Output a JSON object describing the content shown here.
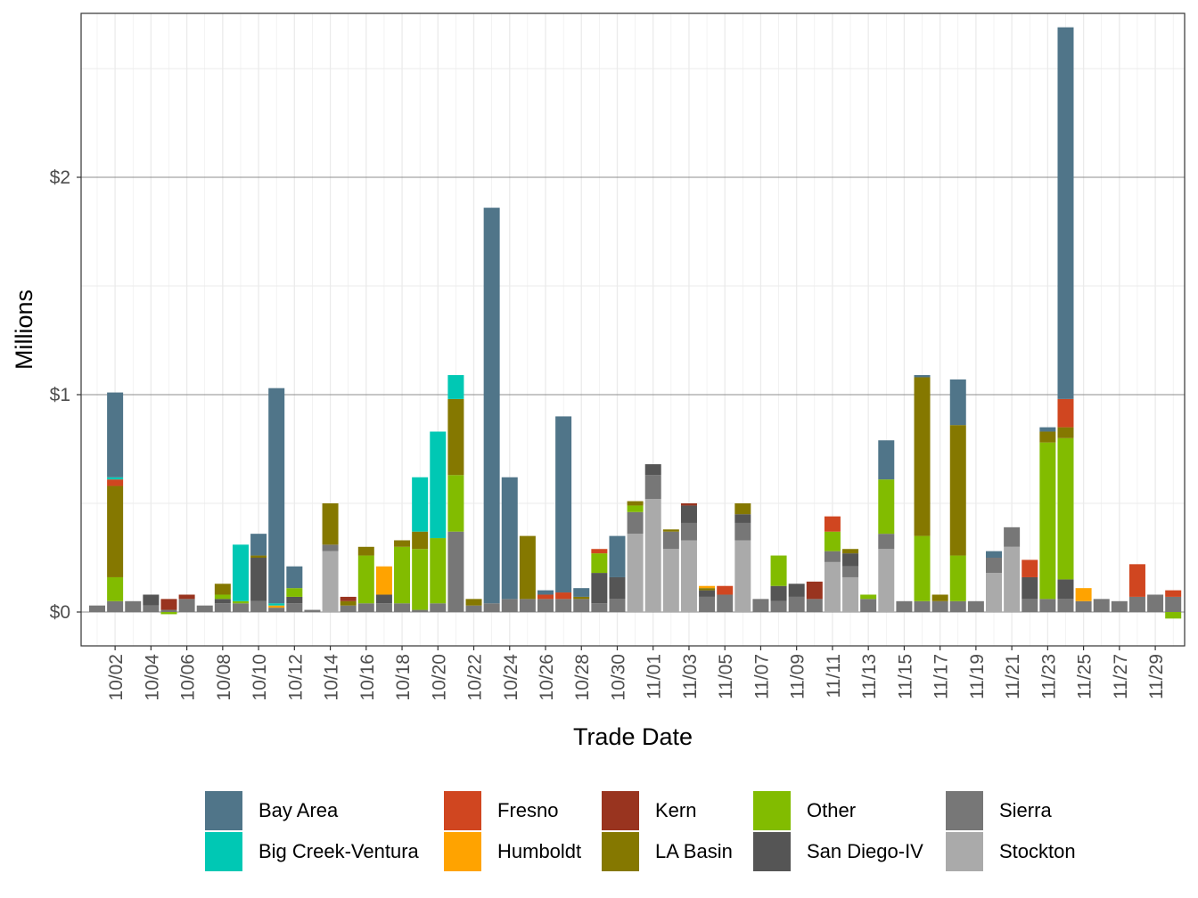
{
  "chart_data": {
    "type": "bar",
    "stacked": true,
    "title": "",
    "xlabel": "Trade Date",
    "ylabel": "Millions",
    "ylim": [
      -0.16,
      2.76
    ],
    "yticks": [
      0,
      1,
      2
    ],
    "ytick_labels": [
      "$0",
      "$1",
      "$2"
    ],
    "grid": true,
    "legend_position": "bottom",
    "x_tick_labels": [
      "10/02",
      "10/04",
      "10/06",
      "10/08",
      "10/10",
      "10/12",
      "10/14",
      "10/16",
      "10/18",
      "10/20",
      "10/22",
      "10/24",
      "10/26",
      "10/28",
      "10/30",
      "11/01",
      "11/03",
      "11/05",
      "11/07",
      "11/09",
      "11/11",
      "11/13",
      "11/15",
      "11/17",
      "11/19",
      "11/21",
      "11/23",
      "11/25",
      "11/27",
      "11/29"
    ],
    "categories": [
      "10/01",
      "10/02",
      "10/03",
      "10/04",
      "10/05",
      "10/06",
      "10/07",
      "10/08",
      "10/09",
      "10/10",
      "10/11",
      "10/12",
      "10/13",
      "10/14",
      "10/15",
      "10/16",
      "10/17",
      "10/18",
      "10/19",
      "10/20",
      "10/21",
      "10/22",
      "10/23",
      "10/24",
      "10/25",
      "10/26",
      "10/27",
      "10/28",
      "10/29",
      "10/30",
      "10/31",
      "11/01",
      "11/02",
      "11/03",
      "11/04",
      "11/05",
      "11/06",
      "11/07",
      "11/08",
      "11/09",
      "11/10",
      "11/11",
      "11/12",
      "11/13",
      "11/14",
      "11/15",
      "11/16",
      "11/17",
      "11/18",
      "11/19",
      "11/20",
      "11/21",
      "11/22",
      "11/23",
      "11/24",
      "11/25",
      "11/26",
      "11/27",
      "11/28",
      "11/29",
      "11/30"
    ],
    "series": [
      {
        "name": "Stockton",
        "color": "#AAAAAA",
        "values": [
          0,
          0,
          0,
          0,
          0,
          0,
          0,
          0,
          0,
          0,
          0,
          0,
          0,
          0.28,
          0,
          0,
          0,
          0,
          0,
          0,
          0,
          0,
          0,
          0,
          0,
          0,
          0,
          0,
          0,
          0,
          0.36,
          0.52,
          0.29,
          0.33,
          0,
          0,
          0.33,
          0,
          0,
          0,
          0,
          0.23,
          0.16,
          0,
          0.29,
          0,
          0,
          0,
          0,
          0,
          0.18,
          0.3,
          0,
          0,
          0,
          0,
          0,
          0,
          0,
          0,
          0
        ]
      },
      {
        "name": "Sierra",
        "color": "#777777",
        "values": [
          0.03,
          0.05,
          0.05,
          0.03,
          0.01,
          0.06,
          0.03,
          0.04,
          0.04,
          0.05,
          0.02,
          0.04,
          0.01,
          0.03,
          0.03,
          0.04,
          0.04,
          0.04,
          0.01,
          0.04,
          0.37,
          0.03,
          0.04,
          0.06,
          0.06,
          0.06,
          0.06,
          0.06,
          0.04,
          0.06,
          0.1,
          0.11,
          0.08,
          0.08,
          0.07,
          0.08,
          0.08,
          0.06,
          0.05,
          0.07,
          0.06,
          0.05,
          0.05,
          0.06,
          0.07,
          0.05,
          0.05,
          0.05,
          0.05,
          0.05,
          0.07,
          0.09,
          0.06,
          0.06,
          0.06,
          0.05,
          0.06,
          0.05,
          0.07,
          0.08,
          0.07
        ]
      },
      {
        "name": "San Diego-IV",
        "color": "#555555",
        "values": [
          0,
          0,
          0,
          0.05,
          0,
          0,
          0,
          0.02,
          0,
          0.2,
          0,
          0.03,
          0,
          0,
          0,
          0,
          0.04,
          0,
          0,
          0,
          0,
          0,
          0,
          0,
          0,
          0,
          0,
          0,
          0.14,
          0.1,
          0,
          0.05,
          0,
          0.08,
          0.03,
          0,
          0.04,
          0,
          0.07,
          0.06,
          0,
          0,
          0.06,
          0,
          0,
          0,
          0,
          0,
          0,
          0,
          0,
          0,
          0.1,
          0,
          0.09,
          0,
          0,
          0,
          0,
          0,
          0
        ]
      },
      {
        "name": "Other",
        "color": "#82BC00",
        "values": [
          0,
          0.11,
          0,
          0,
          -0.01,
          0,
          0,
          0.02,
          0.01,
          0,
          0,
          0.04,
          0,
          0,
          0,
          0.22,
          0,
          0.26,
          0.28,
          0.3,
          0.26,
          0,
          0,
          0,
          0,
          0,
          0,
          0,
          0.09,
          0,
          0.03,
          0,
          0,
          0,
          0,
          0,
          0,
          0,
          0.14,
          0,
          0,
          0.09,
          0,
          0.02,
          0.25,
          0,
          0.3,
          0,
          0.21,
          0,
          0,
          0,
          0,
          0.72,
          0.65,
          0,
          0,
          0,
          0,
          0,
          -0.03
        ]
      },
      {
        "name": "LA Basin",
        "color": "#857800",
        "values": [
          0,
          0.42,
          0,
          0,
          0,
          0,
          0,
          0.05,
          0,
          0.01,
          0,
          0,
          0,
          0.19,
          0.02,
          0.04,
          0,
          0.03,
          0.08,
          0,
          0.35,
          0.03,
          0,
          0,
          0.29,
          0,
          0,
          0.01,
          0,
          0,
          0.02,
          0,
          0.01,
          0,
          0.01,
          0,
          0.05,
          0,
          0,
          0,
          0,
          0,
          0.02,
          0,
          0,
          0,
          0.73,
          0.03,
          0.6,
          0,
          0,
          0,
          0,
          0.05,
          0.05,
          0,
          0,
          0,
          0,
          0,
          0
        ]
      },
      {
        "name": "Kern",
        "color": "#99341F",
        "values": [
          0,
          0,
          0,
          0,
          0.05,
          0.02,
          0,
          0,
          0,
          0,
          0,
          0,
          0,
          0,
          0.02,
          0,
          0,
          0,
          0,
          0,
          0,
          0,
          0,
          0,
          0,
          0,
          0,
          0,
          0,
          0,
          0,
          0,
          0,
          0.01,
          0,
          0,
          0,
          0,
          0,
          0,
          0.08,
          0,
          0,
          0,
          0,
          0,
          0,
          0,
          0,
          0,
          0,
          0,
          0,
          0,
          0,
          0,
          0,
          0,
          0,
          0,
          0
        ]
      },
      {
        "name": "Fresno",
        "color": "#D04620",
        "values": [
          0,
          0.03,
          0,
          0,
          0,
          0,
          0,
          0,
          0,
          0,
          0,
          0,
          0,
          0,
          0,
          0,
          0,
          0,
          0,
          0,
          0,
          0,
          0,
          0,
          0,
          0.02,
          0.03,
          0,
          0.02,
          0,
          0,
          0,
          0,
          0,
          0,
          0.04,
          0,
          0,
          0,
          0,
          0,
          0.07,
          0,
          0,
          0,
          0,
          0,
          0,
          0,
          0,
          0,
          0,
          0.08,
          0,
          0.13,
          0,
          0,
          0,
          0.15,
          0,
          0.03
        ]
      },
      {
        "name": "Humboldt",
        "color": "#FFA300",
        "values": [
          0,
          0,
          0,
          0,
          0,
          0,
          0,
          0,
          0,
          0,
          0.01,
          0,
          0,
          0,
          0,
          0,
          0.13,
          0,
          0,
          0,
          0,
          0,
          0,
          0,
          0,
          0,
          0,
          0,
          0,
          0,
          0,
          0,
          0,
          0,
          0.01,
          0,
          0,
          0,
          0,
          0,
          0,
          0,
          0,
          0,
          0,
          0,
          0,
          0,
          0,
          0,
          0,
          0,
          0,
          0,
          0,
          0.06,
          0,
          0,
          0,
          0,
          0
        ]
      },
      {
        "name": "Big Creek-Ventura",
        "color": "#00C8B4",
        "values": [
          0,
          0.01,
          0,
          0,
          0,
          0,
          0,
          0,
          0.26,
          0,
          0.01,
          0,
          0,
          0,
          0,
          0,
          0,
          0,
          0.25,
          0.49,
          0.11,
          0,
          0,
          0,
          0,
          0,
          0,
          0,
          0,
          0,
          0,
          0,
          0,
          0,
          0,
          0,
          0,
          0,
          0,
          0,
          0,
          0,
          0,
          0,
          0,
          0,
          0,
          0,
          0,
          0,
          0,
          0,
          0,
          0,
          0,
          0,
          0,
          0,
          0,
          0,
          0
        ]
      },
      {
        "name": "Bay Area",
        "color": "#507589",
        "values": [
          0,
          0.39,
          0,
          0,
          0,
          0,
          0,
          0,
          0,
          0.1,
          0.99,
          0.1,
          0,
          0,
          0,
          0,
          0,
          0,
          0,
          0,
          0,
          0,
          1.82,
          0.56,
          0,
          0.02,
          0.81,
          0.04,
          0,
          0.19,
          0,
          0,
          0,
          0,
          0,
          0,
          0,
          0,
          0,
          0,
          0,
          0,
          0,
          0,
          0.18,
          0,
          0.01,
          0,
          0.21,
          0,
          0.03,
          0,
          0,
          0.02,
          1.71,
          0,
          0,
          0,
          0,
          0,
          0
        ]
      }
    ],
    "legend_order": [
      "Bay Area",
      "Big Creek-Ventura",
      "Fresno",
      "Humboldt",
      "Kern",
      "LA Basin",
      "Other",
      "San Diego-IV",
      "Sierra",
      "Stockton"
    ]
  }
}
